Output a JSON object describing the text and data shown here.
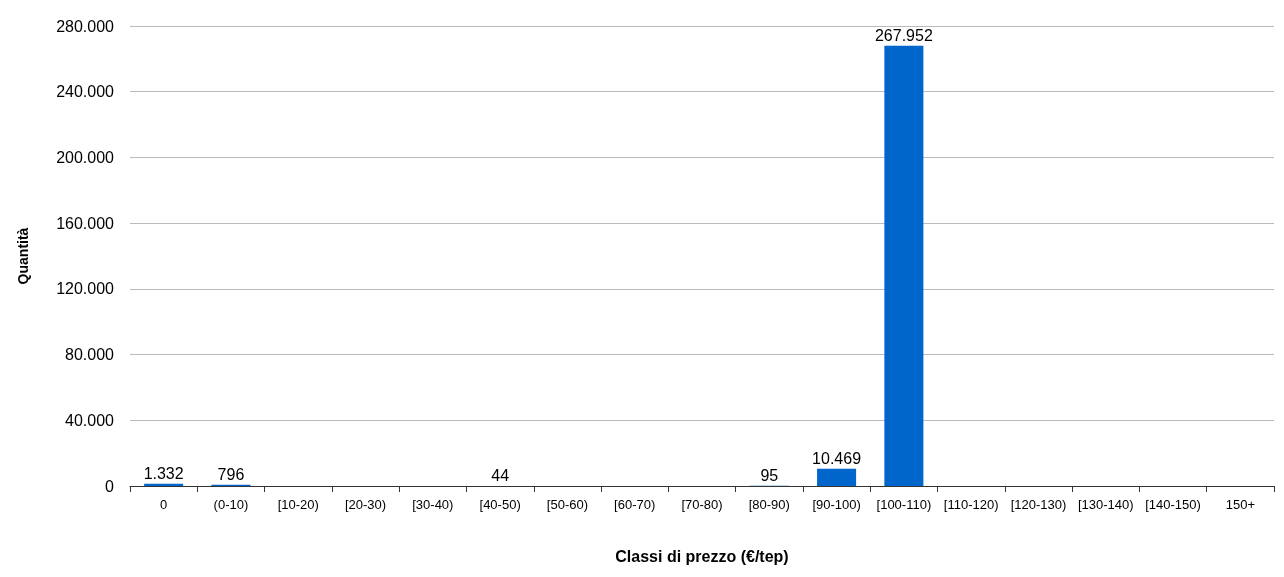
{
  "chart_data": {
    "type": "bar",
    "xlabel": "Classi di prezzo (€/tep)",
    "ylabel": "Quantità",
    "categories": [
      "0",
      "(0-10)",
      "[10-20)",
      "[20-30)",
      "[30-40)",
      "[40-50)",
      "[50-60)",
      "[60-70)",
      "[70-80)",
      "[80-90)",
      "[90-100)",
      "[100-110)",
      "[110-120)",
      "[120-130)",
      "[130-140)",
      "[140-150)",
      "150+"
    ],
    "values": [
      1332,
      796,
      0,
      0,
      0,
      44,
      0,
      0,
      0,
      95,
      10469,
      267952,
      0,
      0,
      0,
      0,
      0
    ],
    "value_labels": [
      "1.332",
      "796",
      null,
      null,
      null,
      "44",
      null,
      null,
      null,
      "95",
      "10.469",
      "267.952",
      null,
      null,
      null,
      null,
      null
    ],
    "color": "#0066cc",
    "ylim": [
      0,
      280000
    ],
    "yticks": [
      {
        "value": 0,
        "label": "0"
      },
      {
        "value": 40000,
        "label": "40.000"
      },
      {
        "value": 80000,
        "label": "80.000"
      },
      {
        "value": 120000,
        "label": "120.000"
      },
      {
        "value": 160000,
        "label": "160.000"
      },
      {
        "value": 200000,
        "label": "200.000"
      },
      {
        "value": 240000,
        "label": "240.000"
      },
      {
        "value": 280000,
        "label": "280.000"
      }
    ],
    "grid": "y"
  }
}
